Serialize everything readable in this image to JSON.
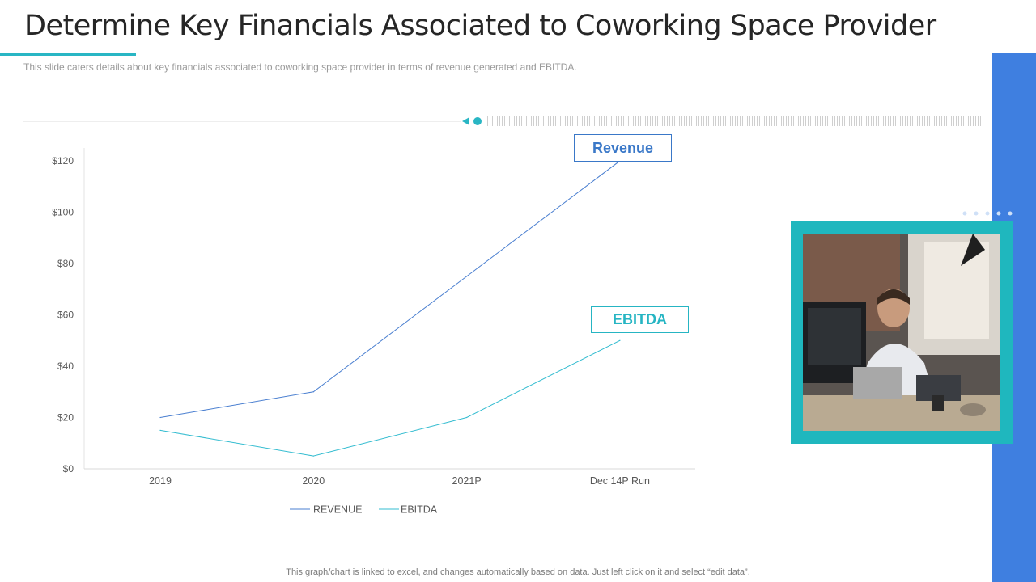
{
  "header": {
    "title": "Determine Key Financials Associated to Coworking Space Provider",
    "subtitle": "This slide caters details about key financials associated to coworking  space provider  in terms of revenue  generated  and EBITDA."
  },
  "callouts": {
    "revenue": "Revenue",
    "ebitda": "EBITDA"
  },
  "footer": {
    "note": "This graph/chart is linked to excel,  and changes automatically based on data. Just left click on it and select “edit data”."
  },
  "colors": {
    "accent_teal": "#29b6c4",
    "side_bar_blue": "#3f7fe0",
    "revenue_line": "#4a7fd0",
    "ebitda_line": "#33bcd0"
  },
  "chart_data": {
    "type": "line",
    "categories": [
      "2019",
      "2020",
      "2021P",
      "Dec 14P Run"
    ],
    "series": [
      {
        "name": "REVENUE",
        "values": [
          20,
          30,
          75,
          120
        ],
        "color": "#4a7fd0"
      },
      {
        "name": "EBITDA",
        "values": [
          15,
          5,
          20,
          50
        ],
        "color": "#33bcd0"
      }
    ],
    "yticks": [
      "$0",
      "$20",
      "$40",
      "$60",
      "$80",
      "$100",
      "$120"
    ],
    "ytick_values": [
      0,
      20,
      40,
      60,
      80,
      100,
      120
    ],
    "ylim": [
      0,
      125
    ],
    "grid": false,
    "legend": "bottom-center",
    "title": "",
    "xlabel": "",
    "ylabel": ""
  }
}
